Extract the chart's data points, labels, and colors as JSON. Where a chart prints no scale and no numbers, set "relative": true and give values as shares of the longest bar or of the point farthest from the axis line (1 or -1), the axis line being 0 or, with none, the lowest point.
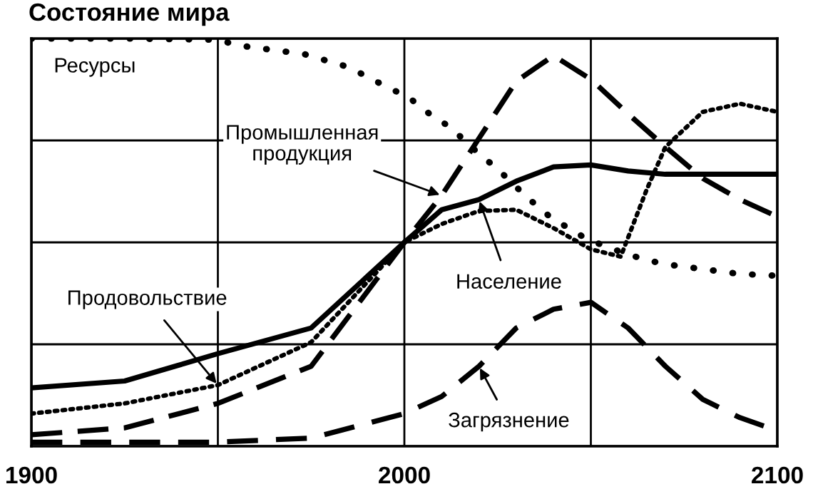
{
  "chart_data": {
    "type": "line",
    "title": "Состояние мира",
    "relative": true,
    "tick_labels": "x",
    "grid": true,
    "legend": false,
    "marker": "none",
    "annotations": [
      {
        "text": "Ресурсы",
        "x": 1925,
        "y": 1.0
      },
      {
        "text": "Промышленная\nпродукция",
        "x": 2010,
        "y": 0.615
      },
      {
        "text": "Население",
        "x": 2020,
        "y": 0.605
      },
      {
        "text": "Продовольствие",
        "x": 1950,
        "y": 0.15
      },
      {
        "text": "Загрязнение",
        "x": 2020,
        "y": 0.196
      }
    ],
    "xlim": [
      1900,
      2100
    ],
    "xticks": [
      1900,
      {
        "value": 1950,
        "label": null
      },
      2000,
      {
        "value": 2050,
        "label": null
      },
      2100
    ],
    "series": [
      {
        "color": "#000000",
        "line_style": "dotted",
        "x": [
          1900,
          1925,
          1950,
          1955.5,
          1973,
          1985,
          1996,
          2001,
          2006,
          2011,
          2015.6,
          2020,
          2025,
          2029.5,
          2033.6,
          2039,
          2044,
          2048.6,
          2054,
          2059.5,
          2065.5,
          2072,
          2089.5,
          2095.5,
          2100
        ],
        "values": [
          1.0,
          1.0,
          0.997,
          0.983,
          0.962,
          0.93,
          0.878,
          0.857,
          0.82,
          0.79,
          0.755,
          0.717,
          0.68,
          0.64,
          0.605,
          0.563,
          0.535,
          0.51,
          0.49,
          0.472,
          0.455,
          0.444,
          0.423,
          0.42,
          0.418
        ]
      },
      {
        "color": "#000000",
        "line_style": "dashed",
        "x": [
          1900,
          1925,
          1950,
          1975,
          2000,
          2010,
          2020,
          2030,
          2040,
          2050,
          2060,
          2070,
          2080,
          2090,
          2100
        ],
        "values": [
          0.028,
          0.045,
          0.105,
          0.196,
          0.5,
          0.615,
          0.755,
          0.895,
          0.958,
          0.9,
          0.815,
          0.734,
          0.657,
          0.605,
          0.563
        ]
      },
      {
        "color": "#000000",
        "line_style": "solid",
        "x": [
          1900,
          1925,
          1950,
          1975,
          2000,
          2010,
          2020,
          2030,
          2040,
          2050,
          2060,
          2070,
          2100
        ],
        "values": [
          0.143,
          0.16,
          0.227,
          0.29,
          0.5,
          0.58,
          0.605,
          0.65,
          0.685,
          0.69,
          0.675,
          0.667,
          0.667
        ]
      },
      {
        "color": "#000000",
        "line_style": "dotted",
        "x": [
          1900,
          1925,
          1950,
          1975,
          2000,
          2010,
          2020,
          2030,
          2040,
          2050,
          2058,
          2065,
          2070,
          2080,
          2090,
          2100
        ],
        "values": [
          0.08,
          0.105,
          0.15,
          0.255,
          0.5,
          0.545,
          0.577,
          0.58,
          0.535,
          0.483,
          0.465,
          0.63,
          0.734,
          0.82,
          0.84,
          0.82
        ]
      },
      {
        "color": "#000000",
        "line_style": "dashed",
        "x": [
          1900,
          1950,
          1975,
          2000,
          2010,
          2020,
          2030,
          2040,
          2050,
          2060,
          2070,
          2080,
          2090,
          2100
        ],
        "values": [
          0.01,
          0.01,
          0.02,
          0.08,
          0.122,
          0.196,
          0.29,
          0.336,
          0.353,
          0.29,
          0.196,
          0.115,
          0.07,
          0.038
        ]
      }
    ]
  }
}
